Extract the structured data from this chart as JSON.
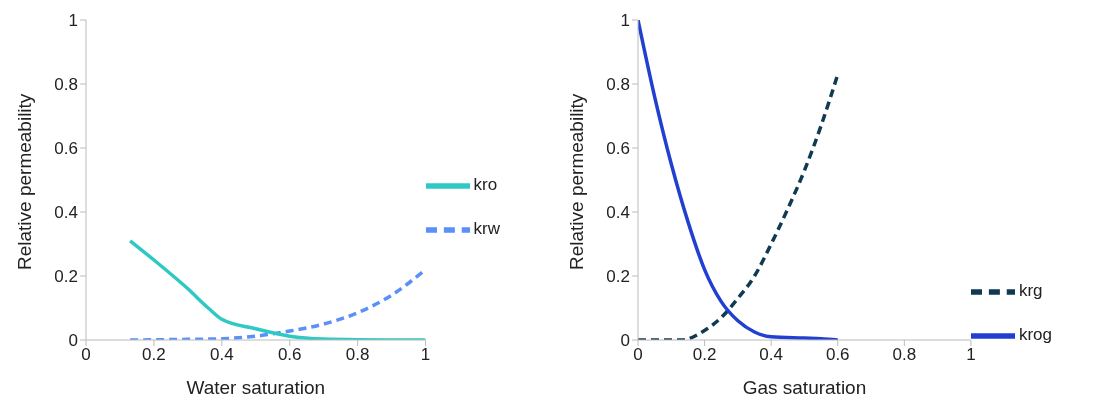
{
  "chart_data": [
    {
      "type": "line",
      "xlabel": "Water saturation",
      "ylabel": "Relative permeability",
      "xlim": [
        0,
        1
      ],
      "xticks": [
        0,
        0.2,
        0.4,
        0.6,
        0.8,
        1
      ],
      "ylim": [
        0,
        1
      ],
      "yticks": [
        0,
        0.2,
        0.4,
        0.6,
        0.8,
        1
      ],
      "grid": false,
      "legend": "right",
      "marker": "none",
      "series": [
        {
          "name": "krw",
          "color": "#5b8ff9",
          "line_style": "dashed",
          "x": [
            0.13,
            0.3,
            0.4,
            0.5,
            0.6,
            0.7,
            0.8,
            0.9,
            1
          ],
          "values": [
            0,
            0.002,
            0.004,
            0.012,
            0.028,
            0.05,
            0.085,
            0.14,
            0.22
          ]
        },
        {
          "name": "kro",
          "color": "#2ec9c4",
          "line_style": "solid",
          "x": [
            0.13,
            0.2,
            0.3,
            0.36,
            0.4,
            0.5,
            0.6,
            0.7,
            0.8,
            1
          ],
          "values": [
            0.31,
            0.25,
            0.16,
            0.1,
            0.065,
            0.035,
            0.012,
            0.003,
            0.001,
            0
          ]
        }
      ]
    },
    {
      "type": "line",
      "xlabel": "Gas saturation",
      "ylabel": "Relative permeability",
      "xlim": [
        0,
        1
      ],
      "xticks": [
        0,
        0.2,
        0.4,
        0.6,
        0.8,
        1
      ],
      "ylim": [
        0,
        1
      ],
      "yticks": [
        0,
        0.2,
        0.4,
        0.6,
        0.8,
        1
      ],
      "grid": false,
      "legend": "bottom right",
      "marker": "none",
      "series": [
        {
          "name": "krg",
          "color": "#0f3a52",
          "line_style": "dashed",
          "x": [
            0,
            0.13,
            0.2,
            0.25,
            0.3,
            0.35,
            0.4,
            0.45,
            0.5,
            0.55,
            0.6
          ],
          "values": [
            0,
            0,
            0.03,
            0.07,
            0.13,
            0.2,
            0.3,
            0.41,
            0.53,
            0.67,
            0.83
          ]
        },
        {
          "name": "krog",
          "color": "#2240d0",
          "line_style": "solid",
          "x": [
            0,
            0.05,
            0.1,
            0.15,
            0.2,
            0.25,
            0.3,
            0.35,
            0.4,
            0.5,
            0.55,
            0.6
          ],
          "values": [
            1,
            0.76,
            0.55,
            0.37,
            0.22,
            0.12,
            0.06,
            0.025,
            0.01,
            0.006,
            0.004,
            0
          ]
        }
      ]
    }
  ]
}
